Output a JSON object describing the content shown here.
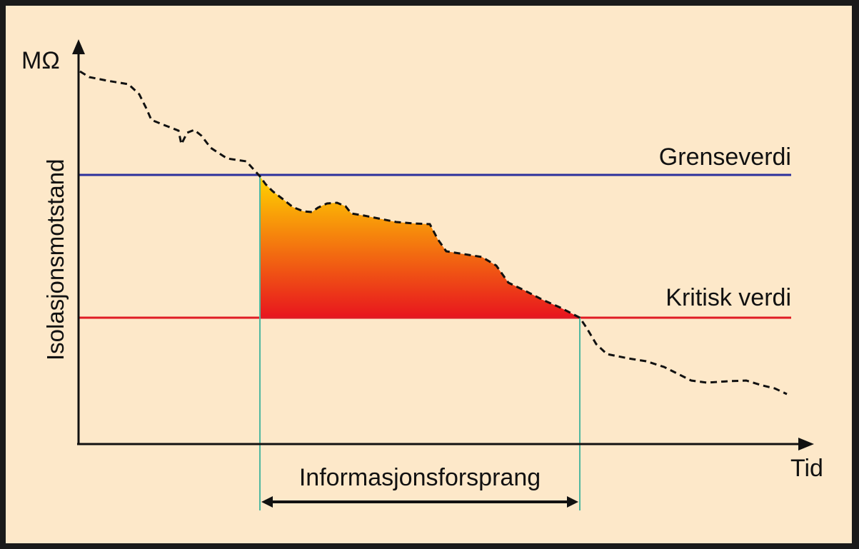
{
  "diagram": {
    "y_axis_unit": "MΩ",
    "y_axis_label": "Isolasjonsmotstand",
    "x_axis_label": "Tid",
    "threshold_label": "Grenseverdi",
    "critical_label": "Kritisk verdi",
    "interval_label": "Informasjonsforsprang"
  },
  "colors": {
    "background": "#fde8c9",
    "frame": "#1a1a1a",
    "threshold_line": "#2b2f9c",
    "critical_line": "#e01b24",
    "interval_lines": "#4fb7a0",
    "gradient_top": "#ffd400",
    "gradient_bottom": "#e8151e"
  }
}
